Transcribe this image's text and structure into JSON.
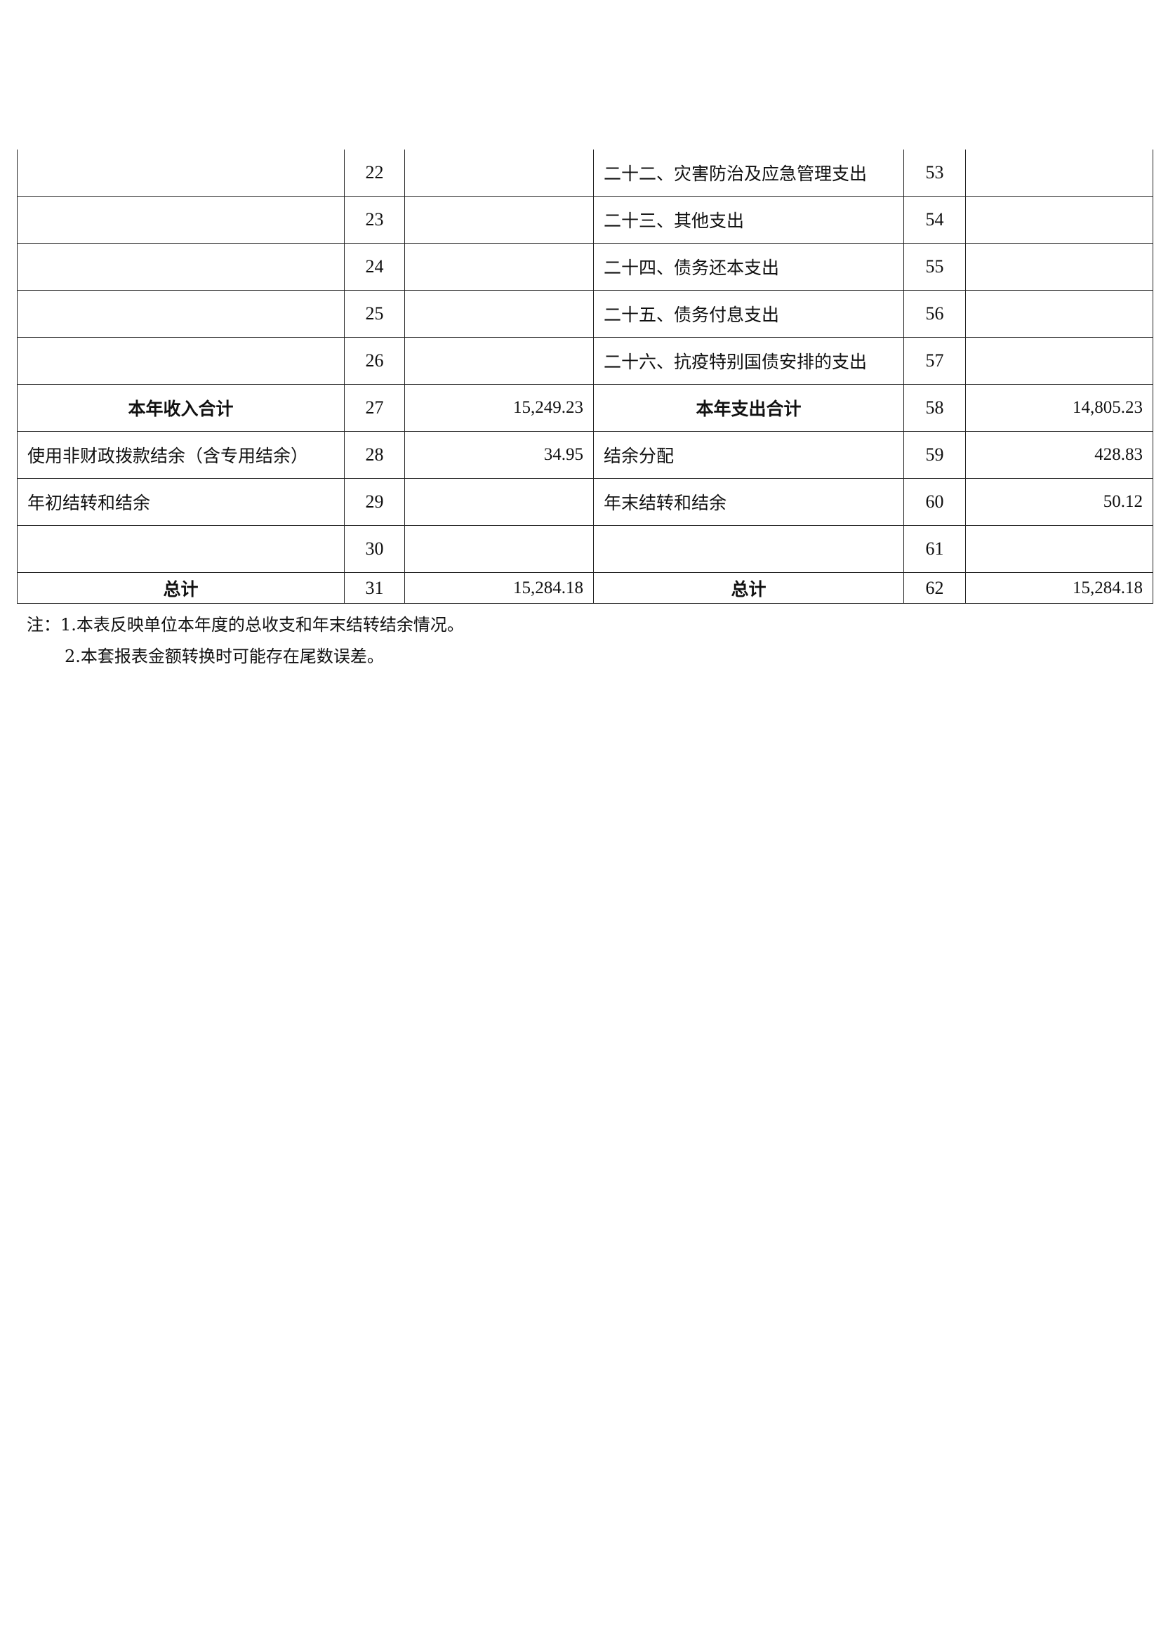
{
  "rows": [
    {
      "l_label": "",
      "l_no": "22",
      "l_val": "",
      "r_label": "二十二、灾害防治及应急管理支出",
      "r_no": "53",
      "r_val": ""
    },
    {
      "l_label": "",
      "l_no": "23",
      "l_val": "",
      "r_label": "二十三、其他支出",
      "r_no": "54",
      "r_val": ""
    },
    {
      "l_label": "",
      "l_no": "24",
      "l_val": "",
      "r_label": "二十四、债务还本支出",
      "r_no": "55",
      "r_val": ""
    },
    {
      "l_label": "",
      "l_no": "25",
      "l_val": "",
      "r_label": "二十五、债务付息支出",
      "r_no": "56",
      "r_val": ""
    },
    {
      "l_label": "",
      "l_no": "26",
      "l_val": "",
      "r_label": "二十六、抗疫特别国债安排的支出",
      "r_no": "57",
      "r_val": ""
    },
    {
      "l_label": "本年收入合计",
      "l_no": "27",
      "l_val": "15,249.23",
      "r_label": "本年支出合计",
      "r_no": "58",
      "r_val": "14,805.23",
      "bold": true
    },
    {
      "l_label": "使用非财政拨款结余（含专用结余）",
      "l_no": "28",
      "l_val": "34.95",
      "r_label": "结余分配",
      "r_no": "59",
      "r_val": "428.83"
    },
    {
      "l_label": "年初结转和结余",
      "l_no": "29",
      "l_val": "",
      "r_label": "年末结转和结余",
      "r_no": "60",
      "r_val": "50.12"
    },
    {
      "l_label": "",
      "l_no": "30",
      "l_val": "",
      "r_label": "",
      "r_no": "61",
      "r_val": ""
    },
    {
      "l_label": "总计",
      "l_no": "31",
      "l_val": "15,284.18",
      "r_label": "总计",
      "r_no": "62",
      "r_val": "15,284.18",
      "bold": true
    }
  ],
  "notes": [
    "注：1.本表反映单位本年度的总收支和年末结转结余情况。",
    "2.本套报表金额转换时可能存在尾数误差。"
  ]
}
